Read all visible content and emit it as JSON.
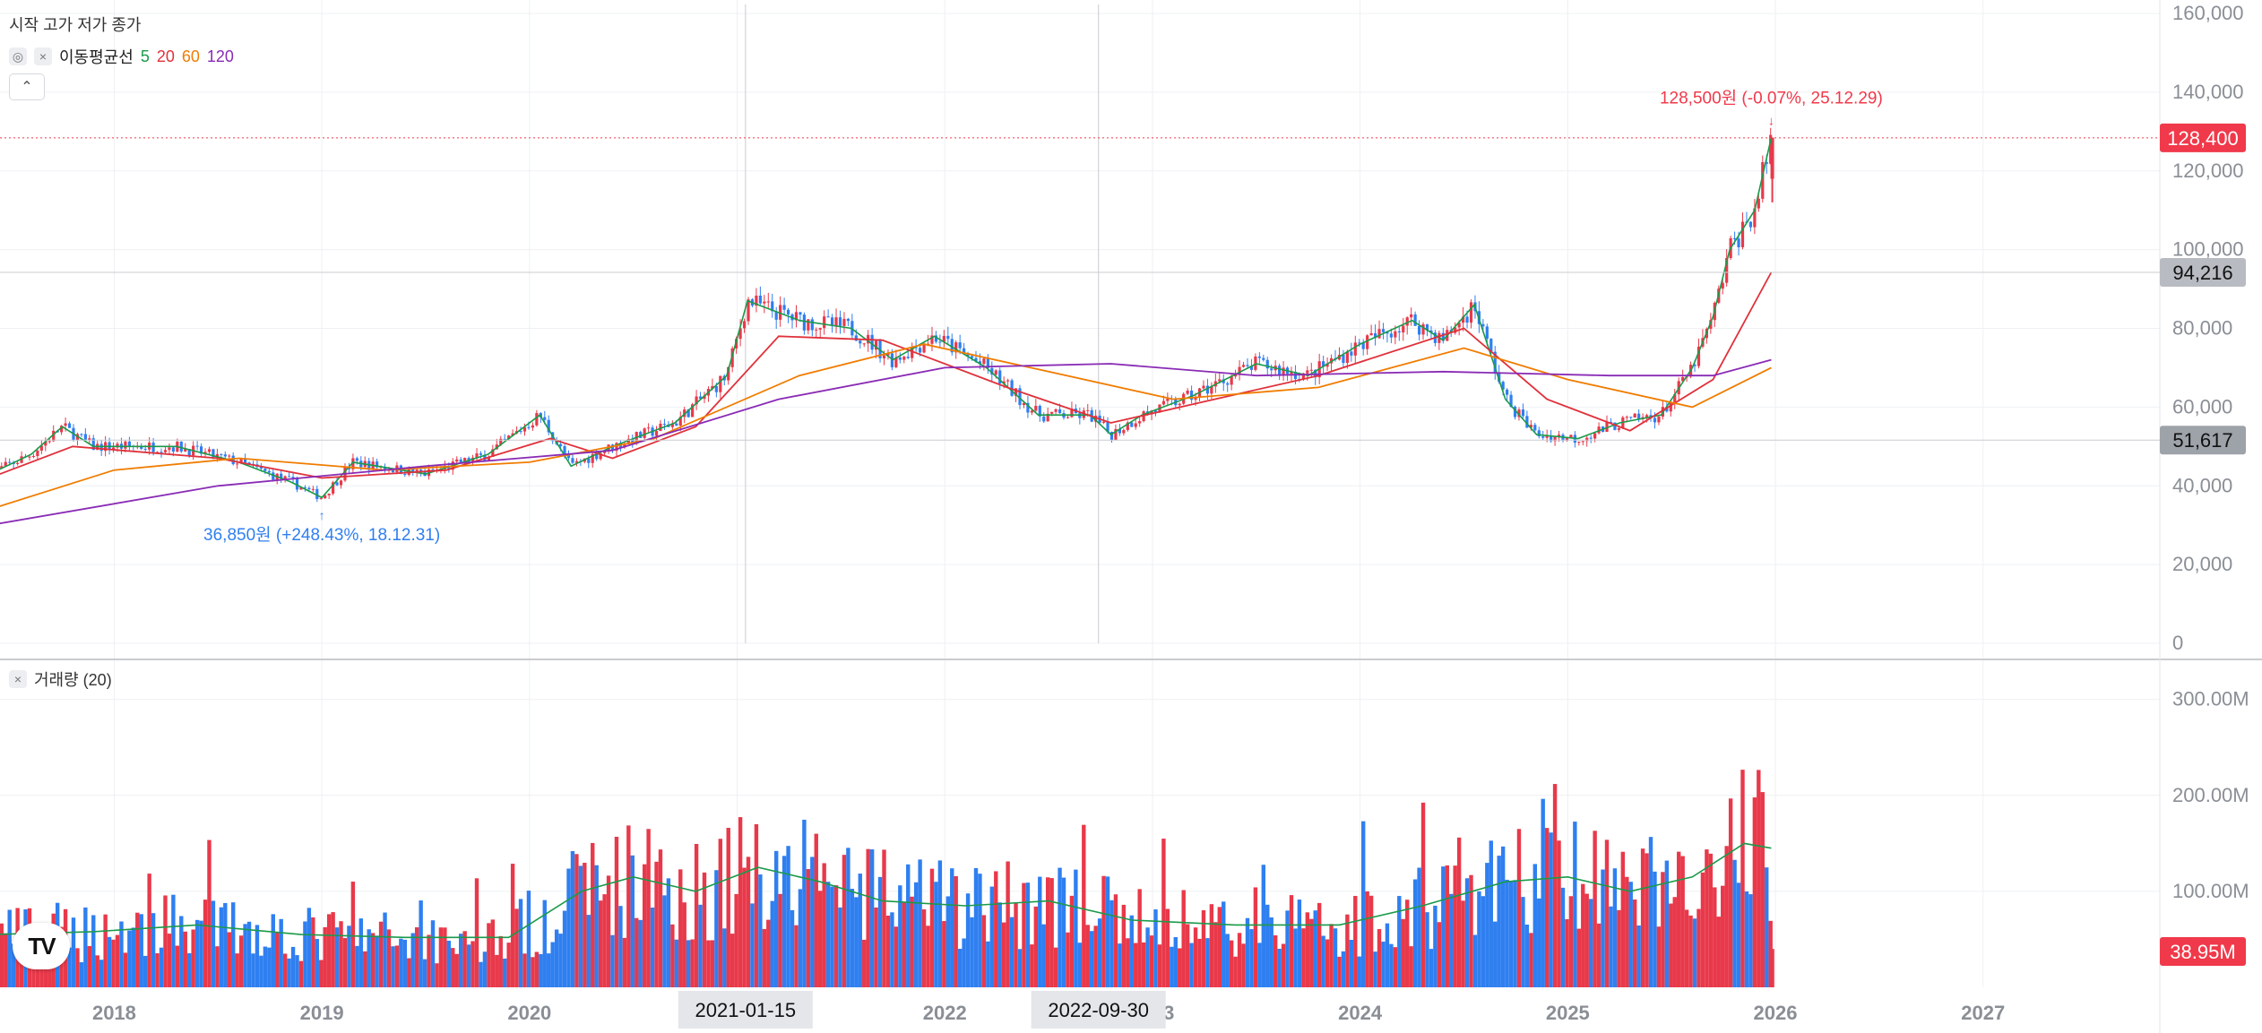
{
  "legend": {
    "ohlc_label": "시작 고가 저가 종가",
    "ma_label": "이동평균선",
    "ma_periods": [
      {
        "period": "5",
        "color": "#1a9a4a"
      },
      {
        "period": "20",
        "color": "#e0313b"
      },
      {
        "period": "60",
        "color": "#f07c00"
      },
      {
        "period": "120",
        "color": "#8a2bb5"
      }
    ],
    "collapse_icon": "chevron-up-icon",
    "eye_icon": "eye-slash-icon",
    "close_icon": "close-icon"
  },
  "volume_legend": {
    "label": "거래량 (20)"
  },
  "annotations": {
    "high": "128,500원 (-0.07%, 25.12.29)",
    "low": "36,850원 (+248.43%, 18.12.31)"
  },
  "price_badges": {
    "current": "128,400",
    "level_upper": "94,216",
    "level_lower": "51,617",
    "volume_current": "38.95M"
  },
  "crosshair_dates": [
    "2021-01-15",
    "2022-09-30"
  ],
  "colors": {
    "up": "#e8394a",
    "down": "#2f7ff0",
    "grid": "#eef0f3",
    "badge_red": "#f0394a",
    "badge_gray": "#b8bcc2"
  },
  "chart_data": {
    "type": "candlestick",
    "price_axis": {
      "ticks": [
        "0",
        "20,000",
        "40,000",
        "60,000",
        "80,000",
        "100,000",
        "120,000",
        "140,000",
        "160,000"
      ],
      "ylim": [
        0,
        160000
      ]
    },
    "volume_axis": {
      "ticks": [
        "100.00M",
        "200.00M",
        "300.00M"
      ],
      "ylim": [
        0,
        310
      ]
    },
    "x_axis": {
      "ticks": [
        "2018",
        "2019",
        "2020",
        "2021",
        "2022",
        "2023",
        "2024",
        "2025",
        "2026",
        "2027"
      ]
    },
    "price_path": [
      [
        2017.4,
        43000
      ],
      [
        2017.6,
        48000
      ],
      [
        2017.75,
        55000
      ],
      [
        2017.9,
        50000
      ],
      [
        2018.3,
        50000
      ],
      [
        2018.6,
        46000
      ],
      [
        2018.85,
        41000
      ],
      [
        2019.0,
        37000
      ],
      [
        2019.15,
        46000
      ],
      [
        2019.5,
        43000
      ],
      [
        2019.8,
        48000
      ],
      [
        2020.05,
        58000
      ],
      [
        2020.2,
        45000
      ],
      [
        2020.4,
        50000
      ],
      [
        2020.7,
        56000
      ],
      [
        2020.95,
        68000
      ],
      [
        2021.05,
        87000
      ],
      [
        2021.3,
        82000
      ],
      [
        2021.55,
        80000
      ],
      [
        2021.75,
        72000
      ],
      [
        2021.95,
        78000
      ],
      [
        2022.2,
        70000
      ],
      [
        2022.45,
        58000
      ],
      [
        2022.7,
        58000
      ],
      [
        2022.8,
        53000
      ],
      [
        2022.95,
        58000
      ],
      [
        2023.2,
        63000
      ],
      [
        2023.5,
        71000
      ],
      [
        2023.75,
        68000
      ],
      [
        2024.0,
        76000
      ],
      [
        2024.25,
        82000
      ],
      [
        2024.4,
        77000
      ],
      [
        2024.55,
        86000
      ],
      [
        2024.7,
        62000
      ],
      [
        2024.85,
        53000
      ],
      [
        2025.05,
        52000
      ],
      [
        2025.25,
        56000
      ],
      [
        2025.45,
        58000
      ],
      [
        2025.6,
        70000
      ],
      [
        2025.7,
        83000
      ],
      [
        2025.78,
        100000
      ],
      [
        2025.9,
        110000
      ],
      [
        2025.98,
        128400
      ]
    ],
    "ma_series": [
      {
        "period": 20,
        "points": [
          [
            2017.4,
            42000
          ],
          [
            2017.8,
            50000
          ],
          [
            2018.5,
            47000
          ],
          [
            2019.0,
            42000
          ],
          [
            2019.6,
            44000
          ],
          [
            2020.1,
            52000
          ],
          [
            2020.4,
            47000
          ],
          [
            2020.8,
            55000
          ],
          [
            2021.2,
            78000
          ],
          [
            2021.7,
            77000
          ],
          [
            2022.3,
            65000
          ],
          [
            2022.8,
            56000
          ],
          [
            2023.3,
            62000
          ],
          [
            2023.8,
            68000
          ],
          [
            2024.5,
            80000
          ],
          [
            2024.9,
            62000
          ],
          [
            2025.3,
            54000
          ],
          [
            2025.7,
            67000
          ],
          [
            2025.98,
            94216
          ]
        ]
      },
      {
        "period": 60,
        "points": [
          [
            2017.4,
            34000
          ],
          [
            2018.0,
            44000
          ],
          [
            2018.6,
            47000
          ],
          [
            2019.3,
            44000
          ],
          [
            2020.0,
            46000
          ],
          [
            2020.6,
            52000
          ],
          [
            2021.3,
            68000
          ],
          [
            2021.9,
            76000
          ],
          [
            2022.5,
            69000
          ],
          [
            2023.1,
            62000
          ],
          [
            2023.8,
            65000
          ],
          [
            2024.5,
            75000
          ],
          [
            2025.0,
            67000
          ],
          [
            2025.6,
            60000
          ],
          [
            2025.98,
            70000
          ]
        ]
      },
      {
        "period": 120,
        "points": [
          [
            2017.4,
            30000
          ],
          [
            2018.5,
            40000
          ],
          [
            2019.5,
            45000
          ],
          [
            2020.4,
            49000
          ],
          [
            2021.2,
            62000
          ],
          [
            2022.0,
            70000
          ],
          [
            2022.8,
            71000
          ],
          [
            2023.5,
            68000
          ],
          [
            2024.4,
            69000
          ],
          [
            2025.2,
            68000
          ],
          [
            2025.7,
            68000
          ],
          [
            2025.98,
            72000
          ]
        ]
      }
    ],
    "volume_ma20_path": [
      [
        2017.4,
        55
      ],
      [
        2017.9,
        58
      ],
      [
        2018.4,
        65
      ],
      [
        2018.9,
        55
      ],
      [
        2019.4,
        52
      ],
      [
        2019.9,
        52
      ],
      [
        2020.25,
        100
      ],
      [
        2020.5,
        115
      ],
      [
        2020.8,
        100
      ],
      [
        2021.1,
        125
      ],
      [
        2021.4,
        110
      ],
      [
        2021.7,
        90
      ],
      [
        2022.1,
        85
      ],
      [
        2022.5,
        90
      ],
      [
        2022.9,
        70
      ],
      [
        2023.4,
        65
      ],
      [
        2023.9,
        65
      ],
      [
        2024.3,
        85
      ],
      [
        2024.7,
        110
      ],
      [
        2025.0,
        115
      ],
      [
        2025.3,
        100
      ],
      [
        2025.6,
        115
      ],
      [
        2025.85,
        150
      ],
      [
        2025.98,
        145
      ]
    ]
  }
}
